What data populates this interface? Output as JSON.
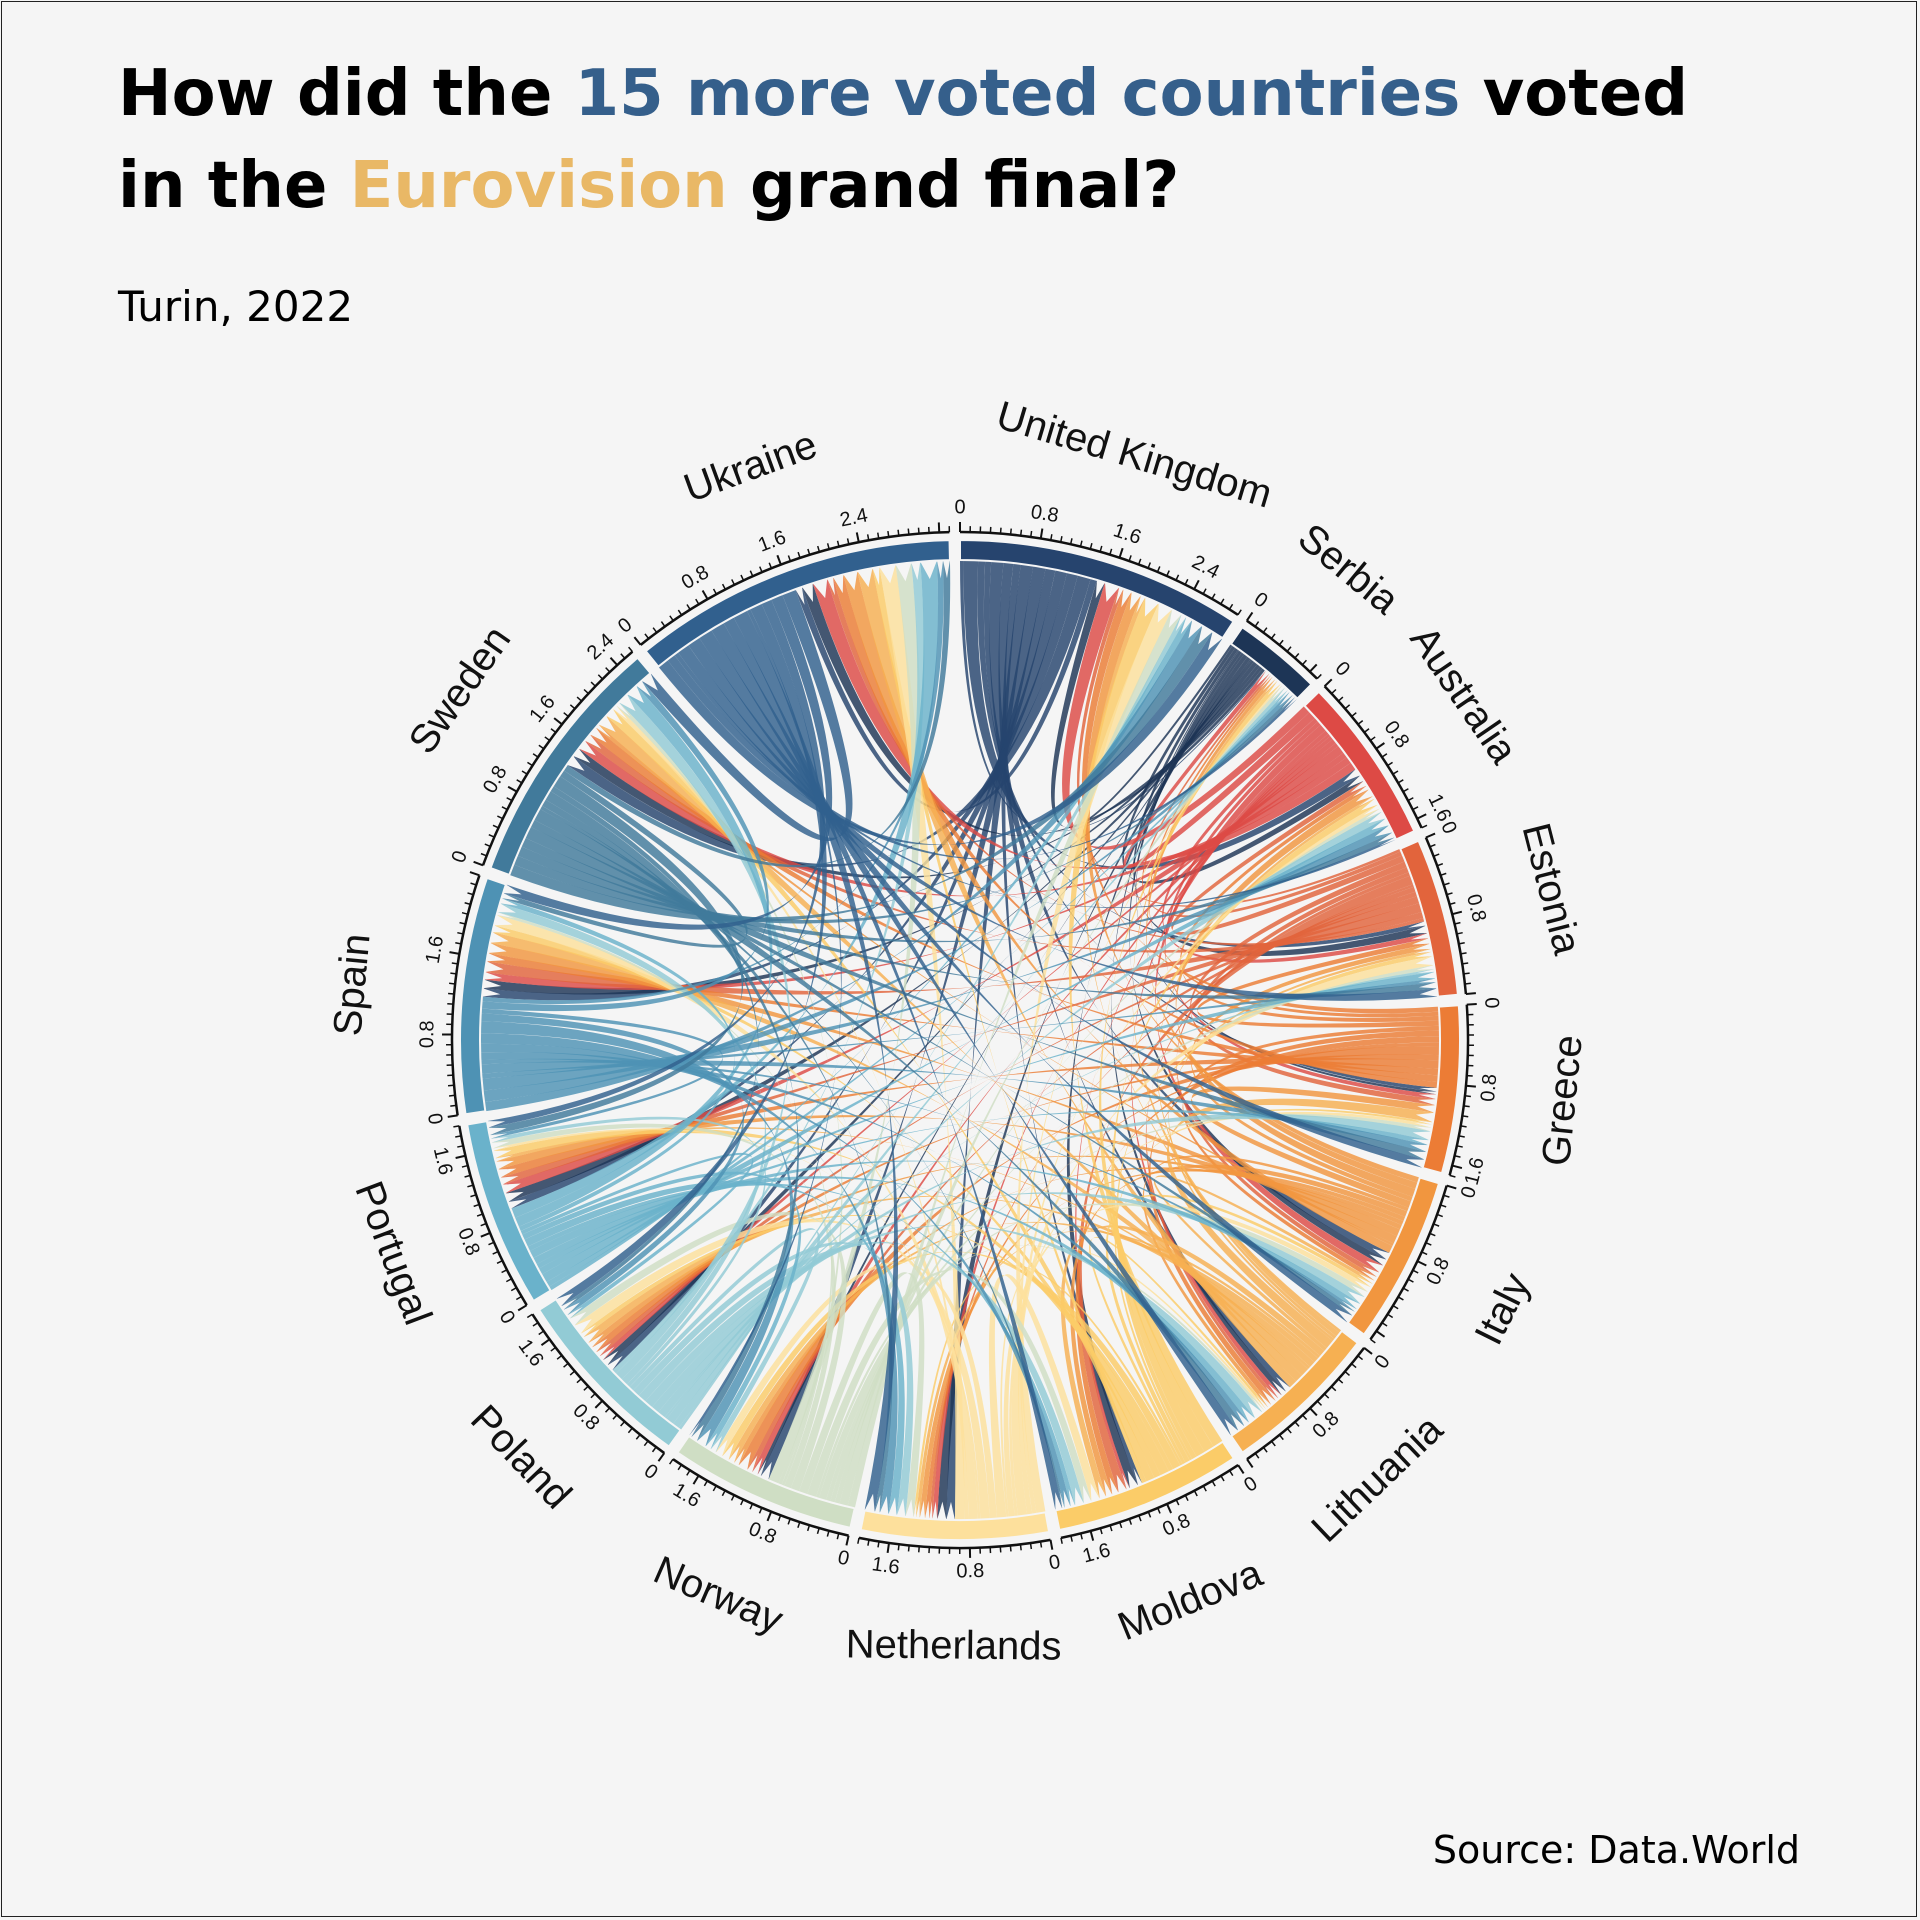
{
  "title": {
    "part1": "How did the ",
    "highlight1": "15 more voted countries",
    "part2": " voted",
    "part3": "in the ",
    "highlight2": "Eurovision",
    "part4": " grand final?"
  },
  "subtitle": "Turin, 2022",
  "source": "Source: Data.World",
  "chart_data": {
    "type": "chord",
    "title": "How did the 15 more voted countries voted in the Eurovision grand final?",
    "subtitle": "Turin, 2022",
    "sectors": [
      {
        "name": "United Kingdom",
        "total": 2.9,
        "ticks": [
          "0",
          "0.8",
          "1.6",
          "2.4"
        ],
        "color": "#26446e"
      },
      {
        "name": "Serbia",
        "total": 0.9,
        "ticks": [
          "0"
        ],
        "color": "#1d3556"
      },
      {
        "name": "Australia",
        "total": 1.7,
        "ticks": [
          "0",
          "0.8",
          "1.6"
        ],
        "color": "#dd4a45"
      },
      {
        "name": "Estonia",
        "total": 1.6,
        "ticks": [
          "0",
          "0.8"
        ],
        "color": "#e2643c"
      },
      {
        "name": "Greece",
        "total": 1.7,
        "ticks": [
          "0",
          "0.8",
          "1.6"
        ],
        "color": "#ec7c35"
      },
      {
        "name": "Italy",
        "total": 1.7,
        "ticks": [
          "0",
          "0.8"
        ],
        "color": "#f1963f"
      },
      {
        "name": "Lithuania",
        "total": 1.6,
        "ticks": [
          "0",
          "0.8"
        ],
        "color": "#f6b052"
      },
      {
        "name": "Moldova",
        "total": 1.9,
        "ticks": [
          "0",
          "0.8",
          "1.6"
        ],
        "color": "#fbcc68"
      },
      {
        "name": "Netherlands",
        "total": 1.9,
        "ticks": [
          "0",
          "0.8",
          "1.6"
        ],
        "color": "#fde09c"
      },
      {
        "name": "Norway",
        "total": 1.9,
        "ticks": [
          "0",
          "0.8",
          "1.6"
        ],
        "color": "#cfdec4"
      },
      {
        "name": "Poland",
        "total": 1.9,
        "ticks": [
          "0",
          "0.8",
          "1.6"
        ],
        "color": "#92cbd5"
      },
      {
        "name": "Portugal",
        "total": 1.9,
        "ticks": [
          "0",
          "0.8",
          "1.6"
        ],
        "color": "#6ab2cb"
      },
      {
        "name": "Spain",
        "total": 2.4,
        "ticks": [
          "0",
          "0.8",
          "1.6"
        ],
        "color": "#4e92b4"
      },
      {
        "name": "Sweden",
        "total": 2.6,
        "ticks": [
          "0",
          "0.8",
          "1.6",
          "2.4"
        ],
        "color": "#417a9b"
      },
      {
        "name": "Ukraine",
        "total": 3.3,
        "ticks": [
          "0",
          "0.8",
          "1.6",
          "2.4"
        ],
        "color": "#31608e"
      }
    ],
    "colors": [
      "#26446e",
      "#1d3556",
      "#dd4a45",
      "#e2643c",
      "#ec7c35",
      "#f1963f",
      "#f6b052",
      "#fbcc68",
      "#fde09c",
      "#cfdec4",
      "#92cbd5",
      "#6ab2cb",
      "#4e92b4",
      "#417a9b",
      "#31608e"
    ]
  }
}
